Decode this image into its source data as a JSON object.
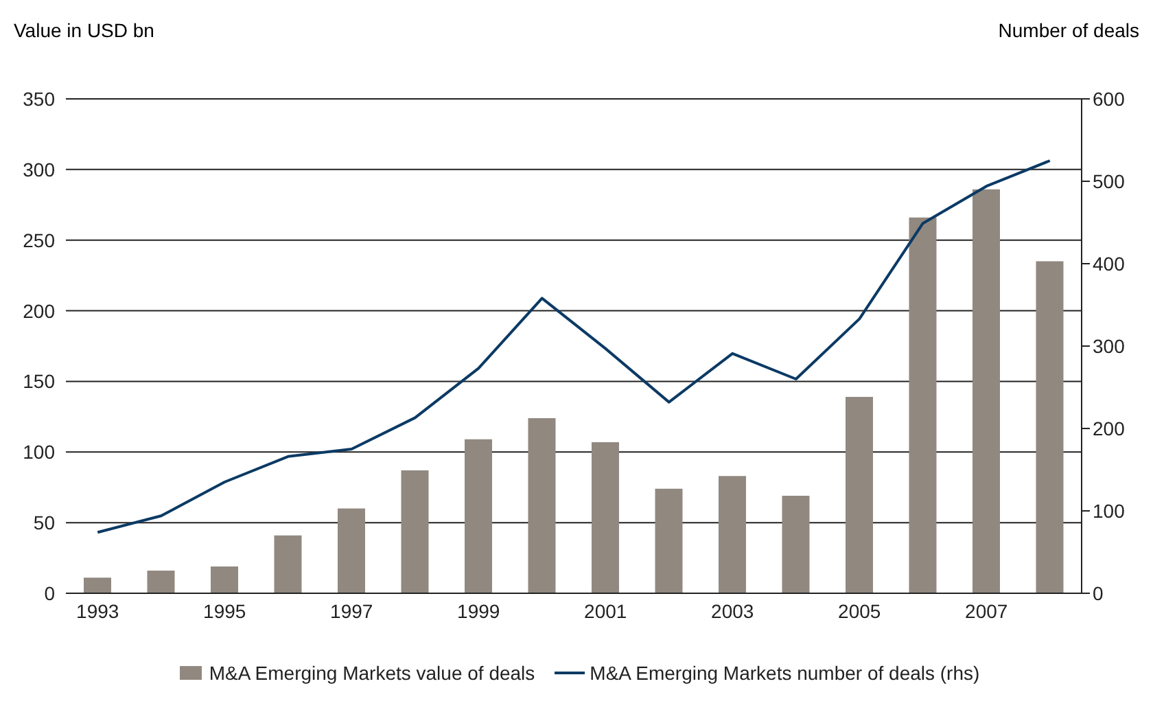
{
  "chart_data": {
    "type": "bar",
    "ylabel": "Value in USD bn",
    "y2label": "Number of deals",
    "categories": [
      "1993",
      null,
      "1995",
      null,
      "1997",
      null,
      "1999",
      null,
      "2001",
      null,
      "2003",
      null,
      "2005",
      null,
      "2007",
      null
    ],
    "series": [
      {
        "name": "M&A Emerging Markets value of deals",
        "color": "#918880",
        "values": [
          11,
          16,
          19,
          41,
          60,
          87,
          109,
          124,
          107,
          74,
          83,
          69,
          139,
          266,
          286,
          235
        ]
      },
      {
        "name": "M&A Emerging Markets number of deals (rhs)",
        "type": "line",
        "axis": "y2",
        "color": "#0b3a64",
        "values": [
          74,
          94,
          135,
          166,
          175,
          213,
          273,
          358,
          297,
          232,
          291,
          260,
          333,
          449,
          494,
          525
        ]
      }
    ],
    "ylim": [
      0,
      350
    ],
    "yticks": [
      0,
      50,
      100,
      150,
      200,
      250,
      300,
      350
    ],
    "y2lim": [
      0,
      600
    ],
    "y2ticks": [
      0,
      100,
      200,
      300,
      400,
      500,
      600
    ],
    "grid": "y",
    "legend": "bottom",
    "marker": "none"
  }
}
